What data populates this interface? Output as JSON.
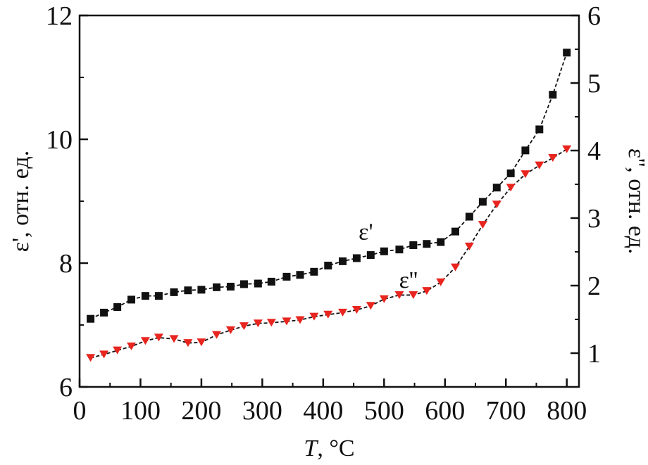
{
  "chart_data": {
    "type": "line",
    "title": "",
    "xlabel": {
      "var": "T",
      "unit": ", °C"
    },
    "ylabel_left": "ε', отн. ед.",
    "ylabel_right": "ε'', отн. ед.",
    "xlim": [
      0,
      820
    ],
    "ylim_left": [
      6,
      12
    ],
    "ylim_right": [
      0.5,
      6
    ],
    "x_ticks": [
      0,
      100,
      200,
      300,
      400,
      500,
      600,
      700,
      800
    ],
    "y_ticks_left": [
      6,
      8,
      10,
      12
    ],
    "y_ticks_right": [
      1,
      2,
      3,
      4,
      5,
      6
    ],
    "grid": false,
    "series": [
      {
        "name": "ε'",
        "axis": "left",
        "marker": "square",
        "color": "#111111",
        "x": [
          18,
          40,
          62,
          85,
          108,
          130,
          155,
          178,
          200,
          225,
          248,
          270,
          293,
          315,
          340,
          362,
          385,
          408,
          432,
          455,
          478,
          500,
          525,
          548,
          570,
          593,
          617,
          640,
          662,
          685,
          708,
          732,
          755,
          777,
          800
        ],
        "values": [
          7.1,
          7.2,
          7.29,
          7.41,
          7.47,
          7.47,
          7.53,
          7.56,
          7.57,
          7.61,
          7.62,
          7.66,
          7.67,
          7.7,
          7.78,
          7.81,
          7.86,
          7.96,
          8.03,
          8.08,
          8.13,
          8.19,
          8.22,
          8.29,
          8.31,
          8.34,
          8.51,
          8.75,
          8.99,
          9.22,
          9.45,
          9.82,
          10.16,
          10.72,
          11.4
        ]
      },
      {
        "name": "ε''",
        "axis": "right",
        "marker": "triangle-down",
        "color": "#e8251f",
        "x": [
          18,
          40,
          62,
          85,
          108,
          130,
          155,
          178,
          200,
          225,
          248,
          270,
          293,
          315,
          340,
          362,
          385,
          408,
          432,
          455,
          478,
          500,
          525,
          548,
          570,
          593,
          617,
          640,
          662,
          685,
          708,
          732,
          755,
          777,
          800
        ],
        "values": [
          0.93,
          0.98,
          1.04,
          1.1,
          1.18,
          1.23,
          1.21,
          1.15,
          1.16,
          1.27,
          1.34,
          1.4,
          1.44,
          1.45,
          1.47,
          1.49,
          1.54,
          1.57,
          1.6,
          1.64,
          1.7,
          1.8,
          1.86,
          1.86,
          1.92,
          2.05,
          2.27,
          2.58,
          2.9,
          3.2,
          3.45,
          3.65,
          3.78,
          3.89,
          4.02
        ]
      }
    ],
    "annotations": [
      {
        "text": "ε'",
        "x": 470,
        "y_left": 8.38
      },
      {
        "text": "ε''",
        "x": 540,
        "y_left": 7.6
      }
    ]
  }
}
